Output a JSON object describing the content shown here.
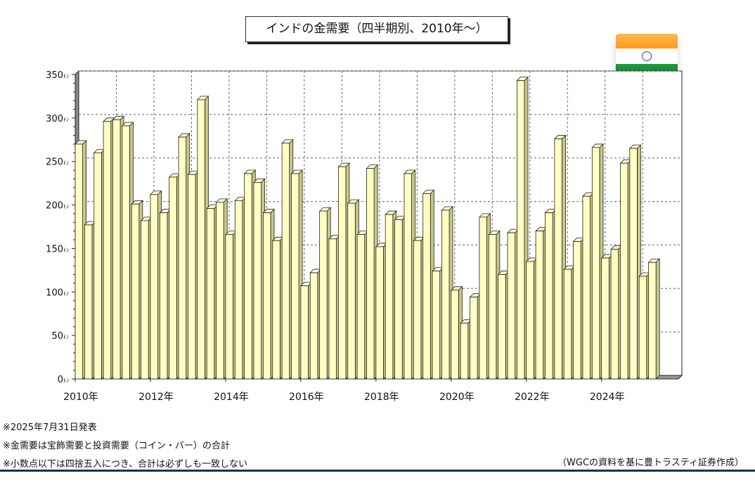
{
  "title": "インドの金需要（四半期別、2010年～）",
  "flag": {
    "name": "india-flag",
    "colors": [
      "#ff9a1f",
      "#ffffff",
      "#13802c"
    ]
  },
  "notes": [
    "※2025年7月31日発表",
    "※金需要は宝飾需要と投資需要（コイン・バー）の合計",
    "※小数点以下は四捨五入につき、合計は必ずしも一致しない"
  ],
  "source": "（WGCの資料を基に豊トラスティ証券作成）",
  "colors": {
    "bar_face": "#ffffc4",
    "bar_side": "#c8c888",
    "bar_top": "#fbfbd8",
    "grid": "#666666",
    "floor": "#999999"
  },
  "chart_data": {
    "type": "bar",
    "grid": true,
    "ylim": [
      0,
      350
    ],
    "y_ticks": [
      0,
      50,
      100,
      150,
      200,
      250,
      300,
      350
    ],
    "y_unit": "ﾄﾝ",
    "x_tick_labels": [
      "2010年",
      "2012年",
      "2014年",
      "2016年",
      "2018年",
      "2020年",
      "2022年",
      "2024年"
    ],
    "categories": [
      "2010 Q1",
      "2010 Q2",
      "2010 Q3",
      "2010 Q4",
      "2011 Q1",
      "2011 Q2",
      "2011 Q3",
      "2011 Q4",
      "2012 Q1",
      "2012 Q2",
      "2012 Q3",
      "2012 Q4",
      "2013 Q1",
      "2013 Q2",
      "2013 Q3",
      "2013 Q4",
      "2014 Q1",
      "2014 Q2",
      "2014 Q3",
      "2014 Q4",
      "2015 Q1",
      "2015 Q2",
      "2015 Q3",
      "2015 Q4",
      "2016 Q1",
      "2016 Q2",
      "2016 Q3",
      "2016 Q4",
      "2017 Q1",
      "2017 Q2",
      "2017 Q3",
      "2017 Q4",
      "2018 Q1",
      "2018 Q2",
      "2018 Q3",
      "2018 Q4",
      "2019 Q1",
      "2019 Q2",
      "2019 Q3",
      "2019 Q4",
      "2020 Q1",
      "2020 Q2",
      "2020 Q3",
      "2020 Q4",
      "2021 Q1",
      "2021 Q2",
      "2021 Q3",
      "2021 Q4",
      "2022 Q1",
      "2022 Q2",
      "2022 Q3",
      "2022 Q4",
      "2023 Q1",
      "2023 Q2",
      "2023 Q3",
      "2023 Q4",
      "2024 Q1",
      "2024 Q2",
      "2024 Q3",
      "2024 Q4",
      "2025 Q1",
      "2025 Q2"
    ],
    "values": [
      270,
      177,
      260,
      296,
      298,
      291,
      201,
      182,
      212,
      191,
      232,
      278,
      235,
      321,
      196,
      203,
      166,
      205,
      236,
      226,
      191,
      159,
      271,
      236,
      107,
      122,
      193,
      161,
      244,
      202,
      166,
      242,
      152,
      189,
      183,
      236,
      159,
      213,
      124,
      194,
      102,
      64,
      94,
      186,
      166,
      120,
      168,
      343,
      135,
      170,
      191,
      276,
      126,
      158,
      210,
      266,
      139,
      149,
      248,
      265,
      118,
      134
    ]
  }
}
